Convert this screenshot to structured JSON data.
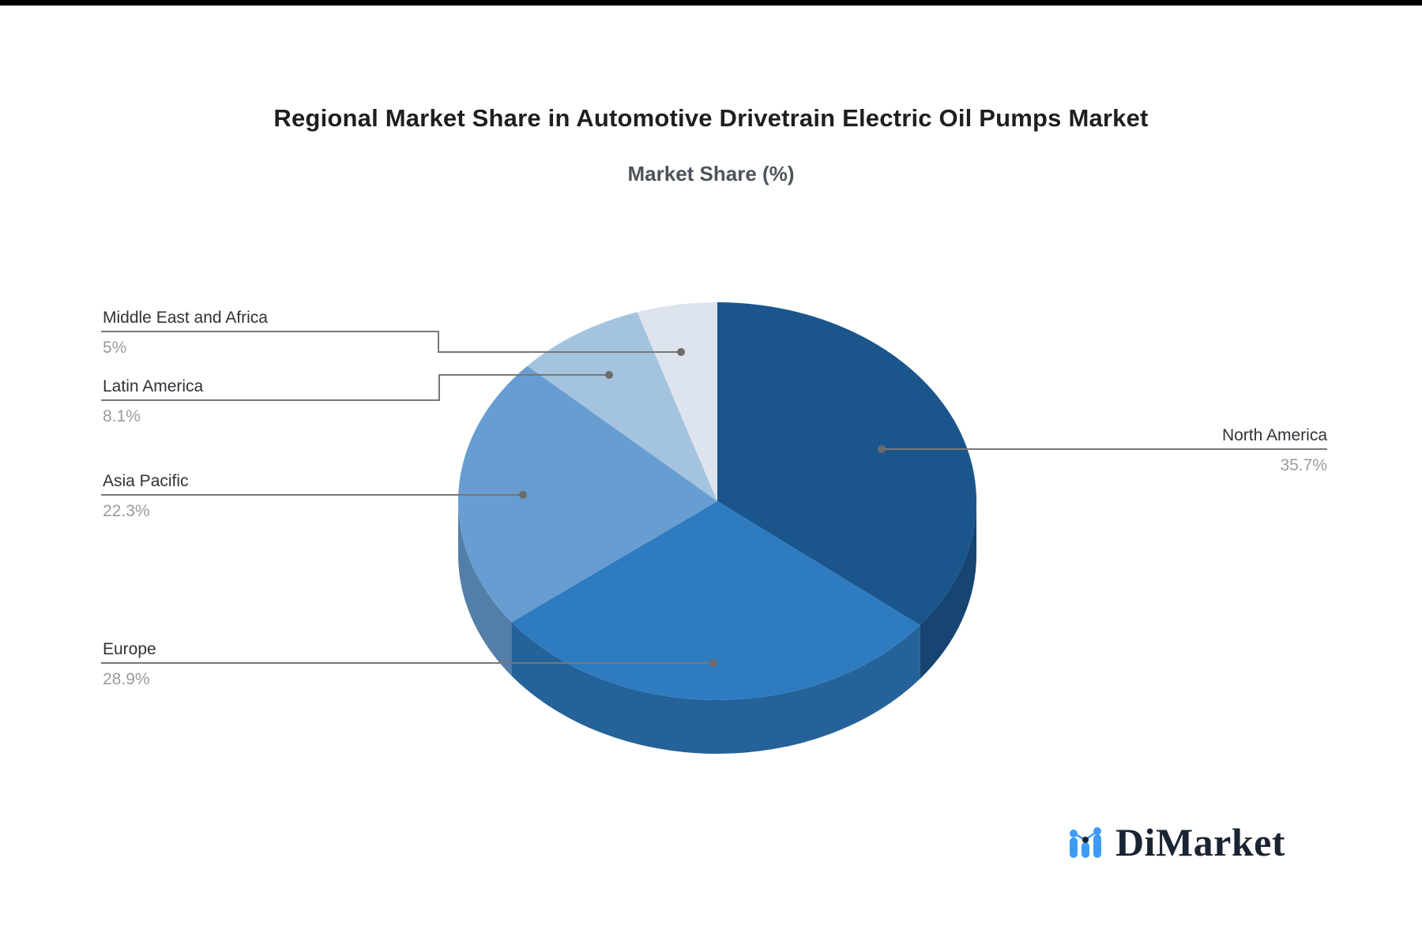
{
  "page": {
    "background": "#FFFFFF",
    "top_bar_color": "#000000"
  },
  "header": {
    "title": "Regional Market Share in Automotive Drivetrain Electric Oil Pumps Market",
    "subtitle": "Market Share (%)"
  },
  "chart_data": {
    "type": "pie",
    "title": "Regional Market Share in Automotive Drivetrain Electric Oil Pumps Market",
    "subtitle": "Market Share (%)",
    "unit": "%",
    "style": "3d-pie",
    "start_angle_deg": 0,
    "direction": "clockwise",
    "legend_position": "callout-labels",
    "slices": [
      {
        "label": "North America",
        "value": 35.7,
        "display": "35.7%",
        "color": "#1A568C"
      },
      {
        "label": "Europe",
        "value": 28.9,
        "display": "28.9%",
        "color": "#2E7BC0"
      },
      {
        "label": "Asia Pacific",
        "value": 22.3,
        "display": "22.3%",
        "color": "#689DD1"
      },
      {
        "label": "Latin America",
        "value": 8.1,
        "display": "8.1%",
        "color": "#A4C3DF"
      },
      {
        "label": "Middle East and Africa",
        "value": 5,
        "display": "5%",
        "color": "#DDE4EE"
      }
    ],
    "callout_line_color": "#777777",
    "callout_dot_color": "#6b6b6b"
  },
  "branding": {
    "logo_text": "DiMarket",
    "logo_text_color": "#1b2433",
    "icon_name": "bar-line-chart-icon",
    "icon_blue": "#3e9cf6",
    "icon_navy": "#16233e"
  }
}
